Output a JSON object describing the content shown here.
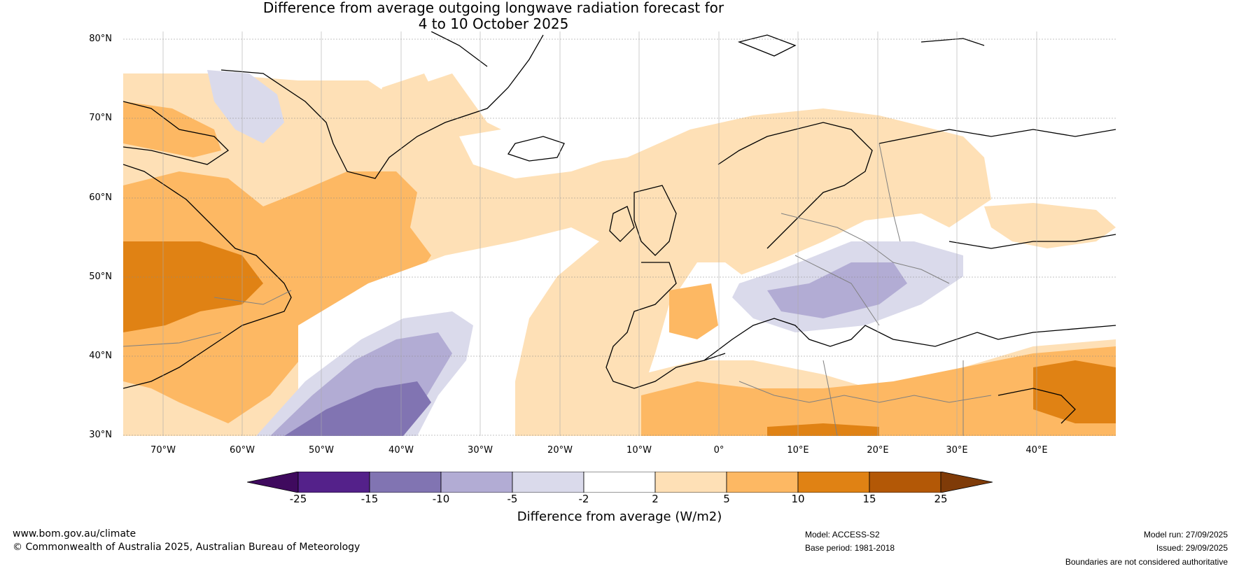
{
  "title": {
    "line1": "Difference from average outgoing longwave radiation forecast for",
    "line2": "4 to 10 October 2025"
  },
  "map": {
    "region": "North Atlantic and Europe",
    "lat_labels": [
      "80°N",
      "70°N",
      "60°N",
      "50°N",
      "40°N",
      "30°N"
    ],
    "lon_labels": [
      "70°W",
      "60°W",
      "50°W",
      "40°W",
      "30°W",
      "20°W",
      "10°W",
      "0°",
      "10°E",
      "20°E",
      "30°E",
      "40°E"
    ],
    "lat_range": [
      30,
      81
    ],
    "lon_range": [
      -75,
      50
    ]
  },
  "colorbar": {
    "ticks": [
      "-25",
      "-15",
      "-10",
      "-5",
      "-2",
      "2",
      "5",
      "10",
      "15",
      "25"
    ],
    "colors": [
      "#3f0a5e",
      "#54218a",
      "#8174b2",
      "#b2acd4",
      "#dadaeb",
      "#ffffff",
      "#fee0b6",
      "#fdb863",
      "#e08214",
      "#b35806",
      "#7f3b08"
    ],
    "label": "Difference from average (W/m2)"
  },
  "footer": {
    "website": "www.bom.gov.au/climate",
    "copyright": "© Commonwealth of Australia 2025, Australian Bureau of Meteorology",
    "model": "Model: ACCESS-S2",
    "base_period": "Base period: 1981-2018",
    "model_run": "Model run: 27/09/2025",
    "issued": "Issued: 29/09/2025",
    "disclaimer": "Boundaries are not considered authoritative"
  }
}
